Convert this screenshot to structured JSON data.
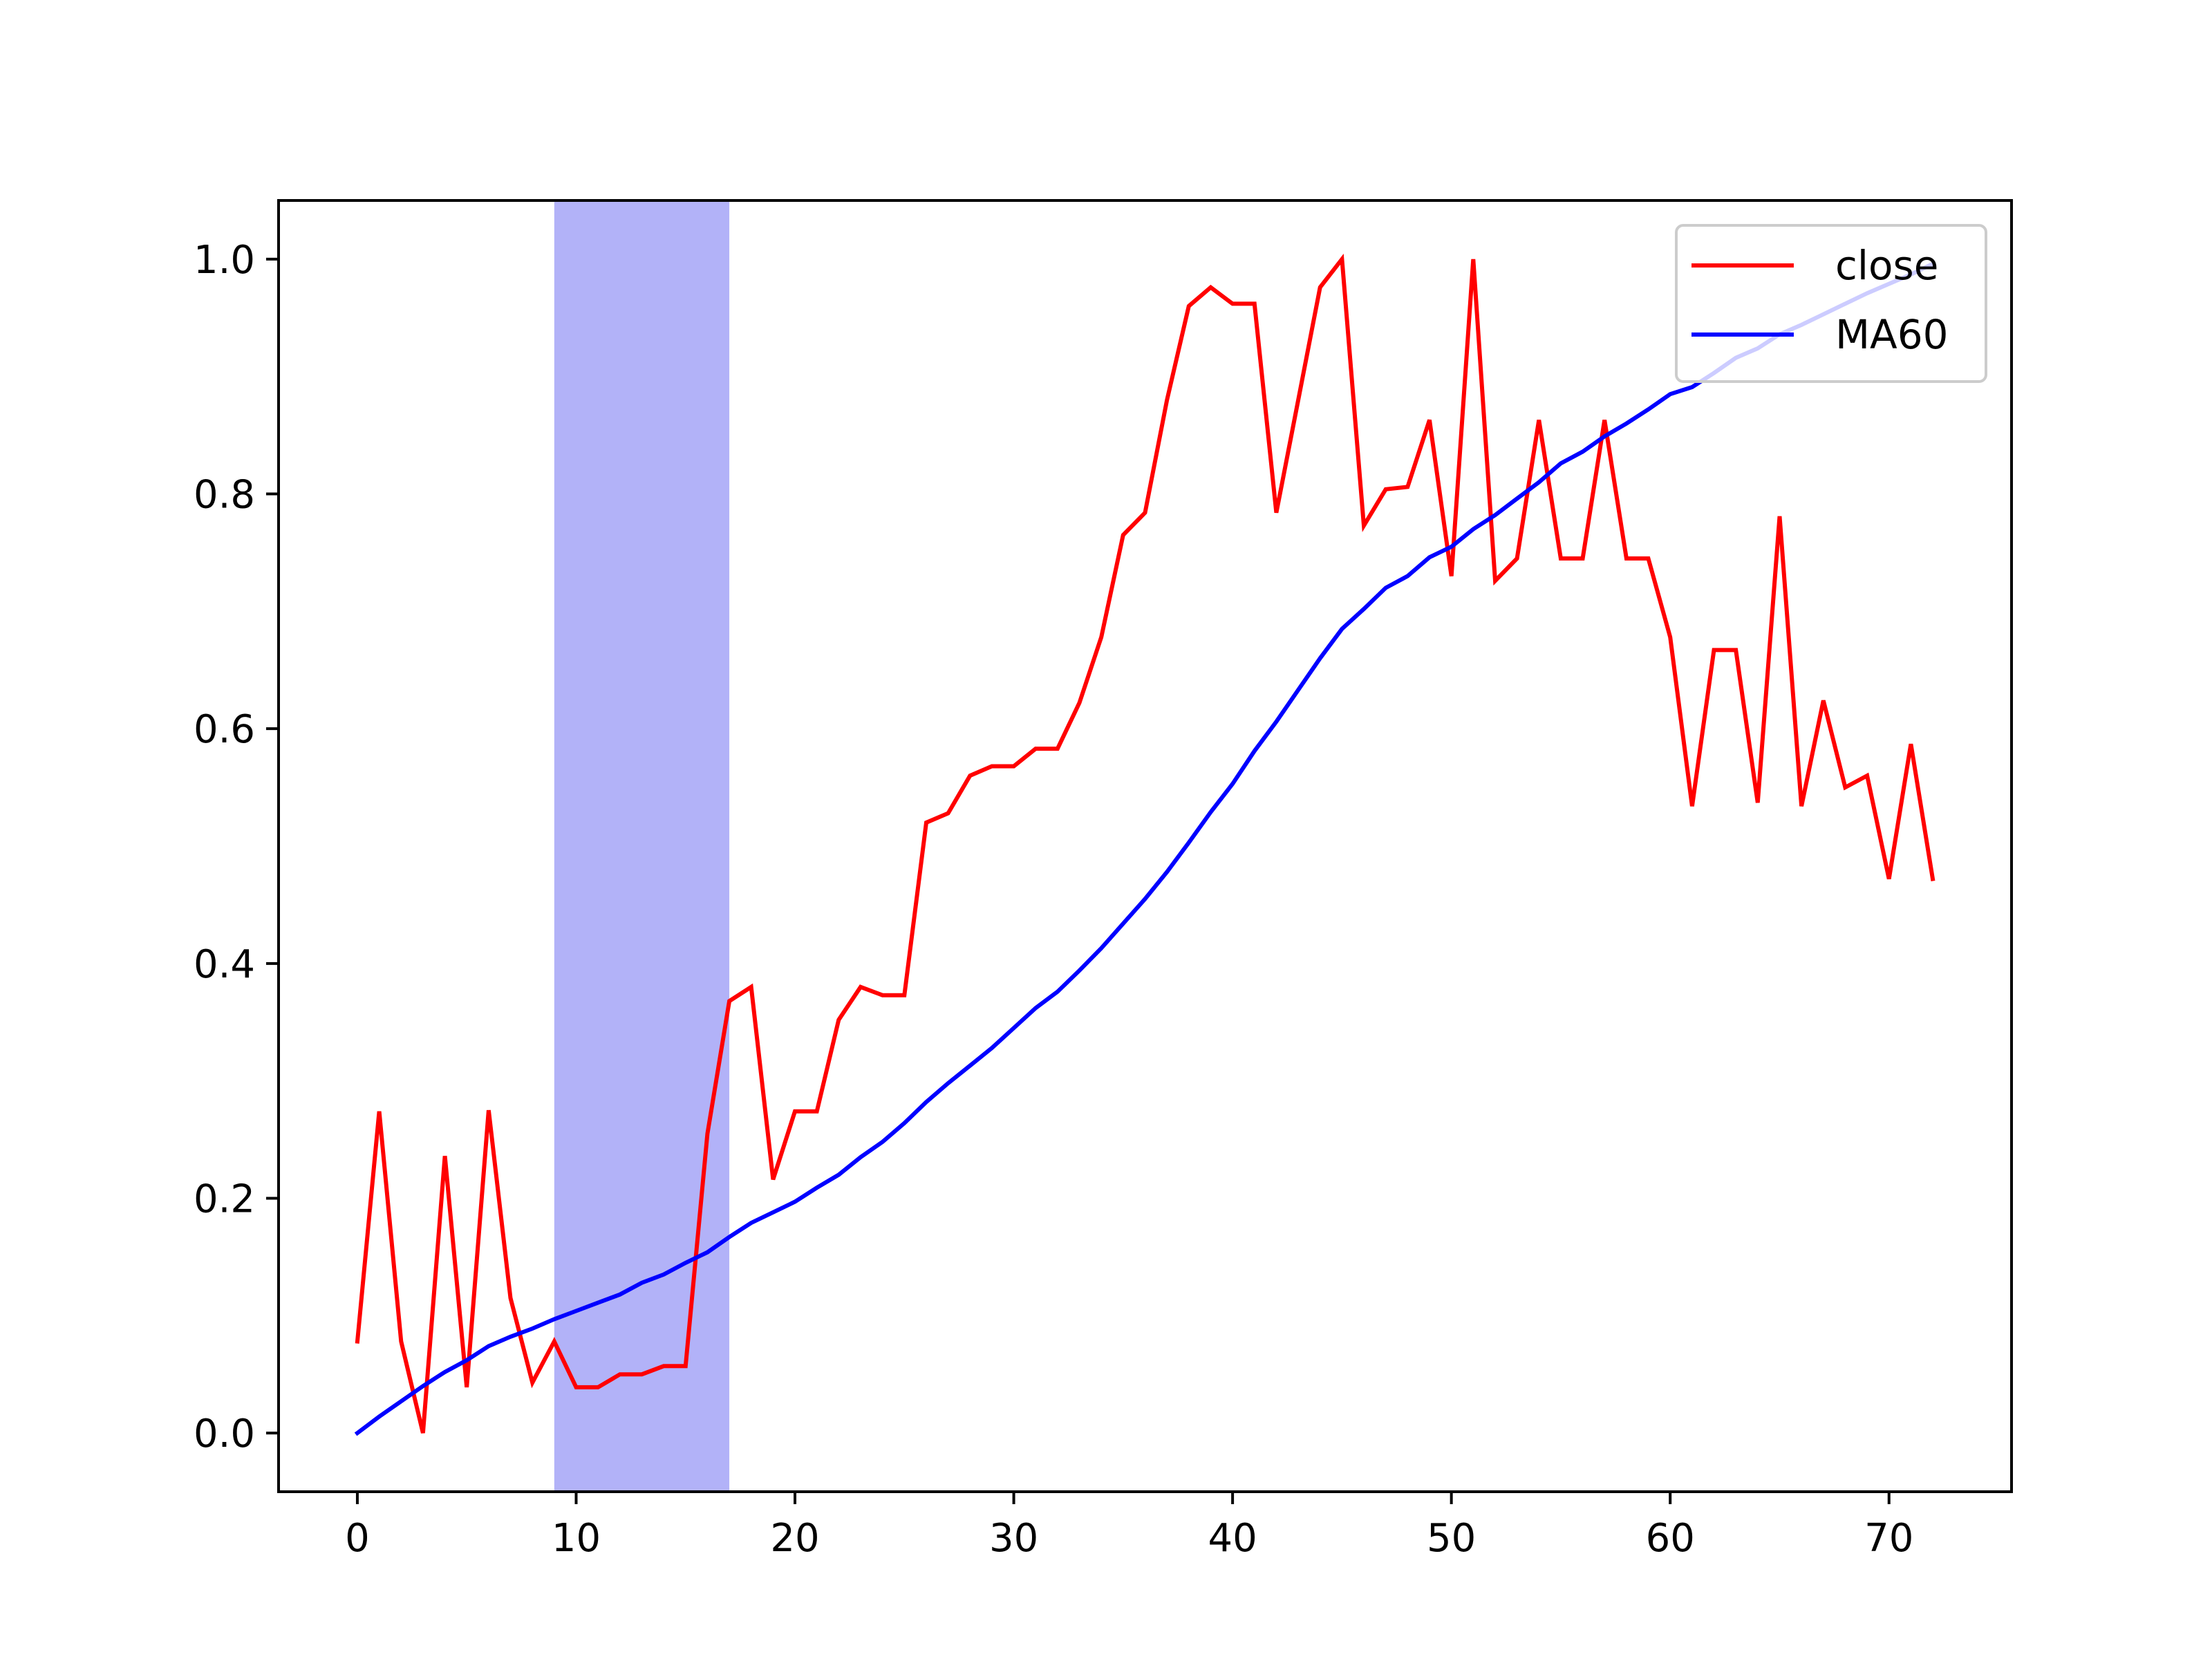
{
  "chart_data": {
    "type": "line",
    "title": "",
    "xlabel": "",
    "ylabel": "",
    "xlim": [
      -3.6,
      75.6
    ],
    "ylim": [
      -0.05,
      1.05
    ],
    "x_ticks": [
      0,
      10,
      20,
      30,
      40,
      50,
      60,
      70
    ],
    "y_ticks": [
      0.0,
      0.2,
      0.4,
      0.6,
      0.8,
      1.0
    ],
    "x_tick_labels": [
      "0",
      "10",
      "20",
      "30",
      "40",
      "50",
      "60",
      "70"
    ],
    "y_tick_labels": [
      "0.0",
      "0.2",
      "0.4",
      "0.6",
      "0.8",
      "1.0"
    ],
    "grid": false,
    "legend_position": "top-right",
    "highlight_span": {
      "x_start": 9,
      "x_end": 17,
      "color": "#b2b2f8"
    },
    "series": [
      {
        "name": "close",
        "color": "#ff0000",
        "x": [
          0,
          1,
          2,
          3,
          4,
          5,
          6,
          7,
          8,
          9,
          10,
          11,
          12,
          13,
          14,
          15,
          16,
          17,
          18,
          19,
          20,
          21,
          22,
          23,
          24,
          25,
          26,
          27,
          28,
          29,
          30,
          31,
          32,
          33,
          34,
          35,
          36,
          37,
          38,
          39,
          40,
          41,
          42,
          43,
          44,
          45,
          46,
          47,
          48,
          49,
          50,
          51,
          52,
          53,
          54,
          55,
          56,
          57,
          58,
          59,
          60,
          61,
          62,
          63,
          64,
          65,
          66,
          67,
          68,
          69,
          70,
          71,
          72
        ],
        "y": [
          0.078,
          0.274,
          0.078,
          0.0,
          0.236,
          0.039,
          0.275,
          0.115,
          0.043,
          0.078,
          0.039,
          0.039,
          0.05,
          0.05,
          0.057,
          0.057,
          0.255,
          0.368,
          0.38,
          0.216,
          0.274,
          0.274,
          0.352,
          0.38,
          0.373,
          0.373,
          0.52,
          0.528,
          0.56,
          0.568,
          0.568,
          0.583,
          0.583,
          0.622,
          0.678,
          0.765,
          0.784,
          0.88,
          0.96,
          0.976,
          0.962,
          0.962,
          0.784,
          0.88,
          0.976,
          1.0,
          0.773,
          0.804,
          0.806,
          0.863,
          0.73,
          1.0,
          0.726,
          0.745,
          0.863,
          0.745,
          0.745,
          0.863,
          0.745,
          0.745,
          0.678,
          0.534,
          0.667,
          0.667,
          0.537,
          0.781,
          0.534,
          0.624,
          0.55,
          0.56,
          0.472,
          0.587,
          0.472
        ]
      },
      {
        "name": "MA60",
        "color": "#0000ff",
        "x": [
          0,
          1,
          2,
          3,
          4,
          5,
          6,
          7,
          8,
          9,
          10,
          11,
          12,
          13,
          14,
          15,
          16,
          17,
          18,
          19,
          20,
          21,
          22,
          23,
          24,
          25,
          26,
          27,
          28,
          29,
          30,
          31,
          32,
          33,
          34,
          35,
          36,
          37,
          38,
          39,
          40,
          41,
          42,
          43,
          44,
          45,
          46,
          47,
          48,
          49,
          50,
          51,
          52,
          53,
          54,
          55,
          56,
          57,
          58,
          59,
          60,
          61,
          62,
          63,
          64,
          65,
          66,
          67,
          68,
          69,
          70,
          71,
          72
        ],
        "y": [
          0.0,
          0.014,
          0.027,
          0.04,
          0.052,
          0.062,
          0.074,
          0.082,
          0.089,
          0.097,
          0.104,
          0.111,
          0.118,
          0.128,
          0.135,
          0.145,
          0.154,
          0.167,
          0.179,
          0.188,
          0.197,
          0.209,
          0.22,
          0.235,
          0.248,
          0.264,
          0.282,
          0.298,
          0.313,
          0.328,
          0.345,
          0.362,
          0.376,
          0.394,
          0.413,
          0.434,
          0.455,
          0.478,
          0.503,
          0.529,
          0.553,
          0.581,
          0.606,
          0.633,
          0.66,
          0.685,
          0.702,
          0.72,
          0.73,
          0.746,
          0.755,
          0.77,
          0.782,
          0.796,
          0.81,
          0.826,
          0.836,
          0.849,
          0.86,
          0.872,
          0.885,
          0.891,
          0.903,
          0.916,
          0.924,
          0.936,
          0.944,
          0.953,
          0.962,
          0.971,
          0.979,
          0.987,
          0.996
        ]
      }
    ]
  }
}
